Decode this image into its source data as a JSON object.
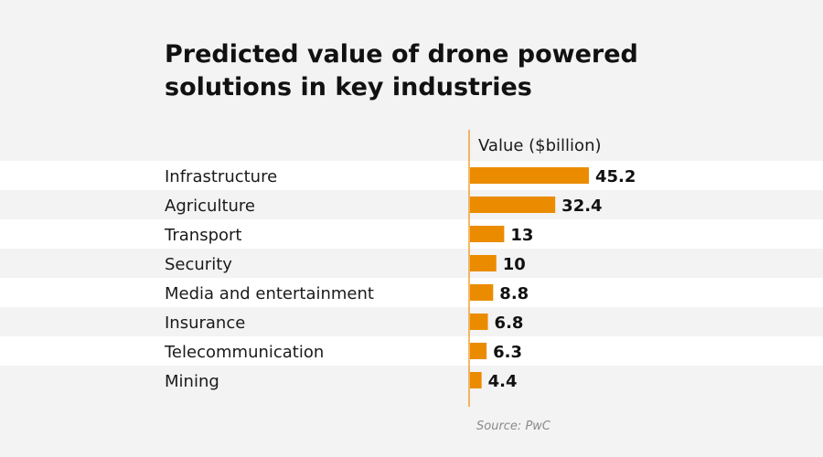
{
  "title": "Predicted value of drone powered solutions in key industries",
  "source": "Source: PwC",
  "colors": {
    "bar": "#eb8c00",
    "axis_line": "#eb8c00",
    "stripe": "#ffffff",
    "background": "#f3f3f3",
    "text": "#1a1a1a"
  },
  "chart_data": {
    "type": "bar",
    "orientation": "horizontal",
    "value_header": "Value ($billion)",
    "categories": [
      "Infrastructure",
      "Agriculture",
      "Transport",
      "Security",
      "Media and entertainment",
      "Insurance",
      "Telecommunication",
      "Mining"
    ],
    "values": [
      45.2,
      32.4,
      13,
      10,
      8.8,
      6.8,
      6.3,
      4.4
    ],
    "value_labels": [
      "45.2",
      "32.4",
      "13",
      "10",
      "8.8",
      "6.8",
      "6.3",
      "4.4"
    ],
    "xlim": [
      0,
      50
    ],
    "grid": false,
    "legend": "none"
  }
}
